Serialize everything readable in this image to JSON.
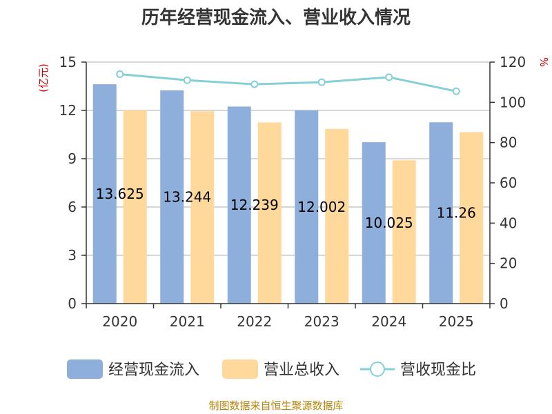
{
  "chart_data": {
    "type": "bar",
    "title": "历年经营现金流入、营业收入情况",
    "categories": [
      "2020",
      "2021",
      "2022",
      "2023",
      "2024",
      "2025"
    ],
    "y_left": {
      "unit": "(亿元)",
      "lim": [
        0,
        15
      ],
      "ticks": [
        "0",
        "3",
        "6",
        "9",
        "12",
        "15"
      ]
    },
    "y_right": {
      "unit": "%",
      "lim": [
        0,
        120
      ],
      "ticks": [
        "0",
        "20",
        "40",
        "60",
        "80",
        "100",
        "120"
      ]
    },
    "series": [
      {
        "name": "经营现金流入",
        "type": "bar",
        "axis": "left",
        "color": "#8eaedb",
        "values": [
          13.625,
          13.244,
          12.239,
          12.002,
          10.025,
          11.26
        ],
        "labels": [
          "13.625",
          "13.244",
          "12.239",
          "12.002",
          "10.025",
          "11.26"
        ]
      },
      {
        "name": "营业总收入",
        "type": "bar",
        "axis": "left",
        "color": "#ffd99b",
        "values": [
          12.0,
          11.95,
          11.25,
          10.85,
          8.9,
          10.65
        ]
      },
      {
        "name": "营收现金比",
        "type": "line",
        "axis": "right",
        "color": "#85d0d6",
        "values": [
          114,
          111,
          109,
          110,
          112.5,
          105.5
        ]
      }
    ],
    "grid": true,
    "legend": "bottom"
  },
  "footer": {
    "source": "制图数据来自恒生聚源数据库"
  }
}
